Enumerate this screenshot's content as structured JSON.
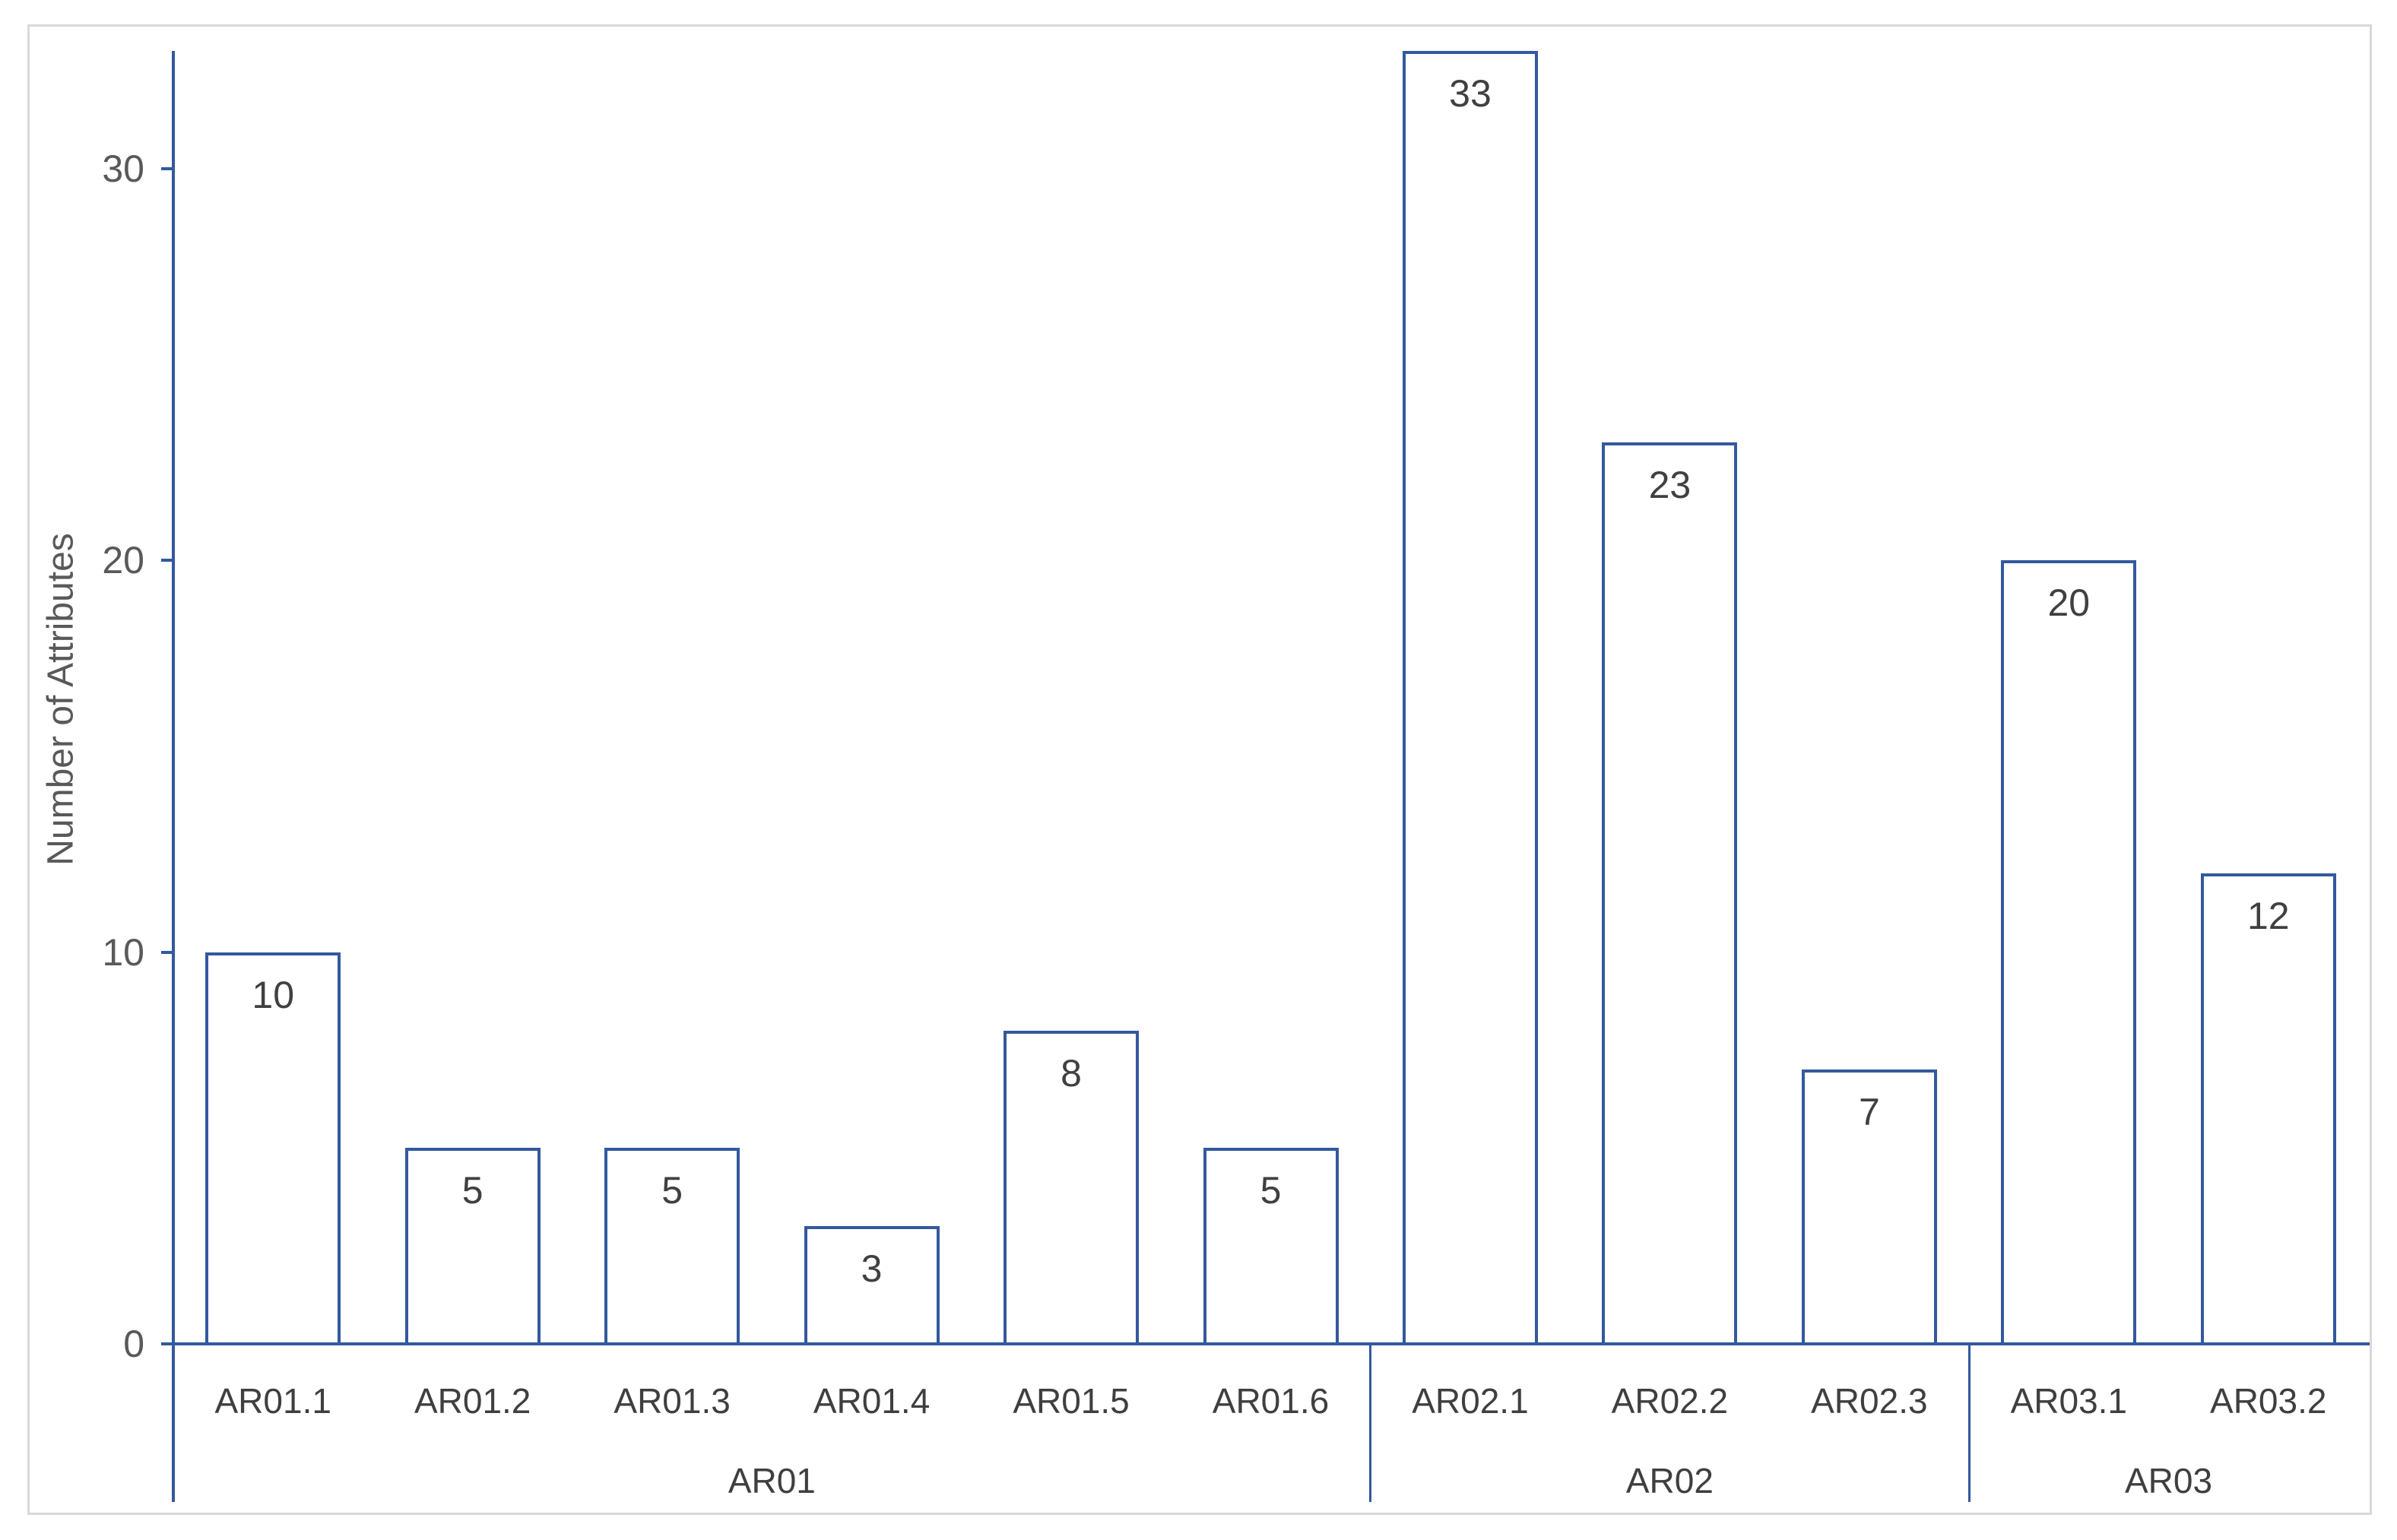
{
  "chart_data": {
    "type": "bar",
    "title": "",
    "xlabel": "",
    "ylabel": "Number of Attributes",
    "ylim": [
      0,
      33
    ],
    "yticks": [
      0,
      10,
      20,
      30
    ],
    "gridlines": false,
    "legend": false,
    "data_labels_position": "inside-end",
    "groups": [
      {
        "label": "AR01",
        "categories": [
          "AR01.1",
          "AR01.2",
          "AR01.3",
          "AR01.4",
          "AR01.5",
          "AR01.6"
        ],
        "values": [
          10,
          5,
          5,
          3,
          8,
          5
        ]
      },
      {
        "label": "AR02",
        "categories": [
          "AR02.1",
          "AR02.2",
          "AR02.3"
        ],
        "values": [
          33,
          23,
          7
        ]
      },
      {
        "label": "AR03",
        "categories": [
          "AR03.1",
          "AR03.2"
        ],
        "values": [
          20,
          12
        ]
      }
    ],
    "colors": {
      "bar_fill": "#FFFFFF",
      "bar_border": "#33599E",
      "axis": "#33599E",
      "separator": "#33599E",
      "data_label_text": "#404040",
      "tick_text": "#595959",
      "category_text": "#3F3F3F",
      "axis_title_text": "#595959",
      "frame_border": "#D9D9D9",
      "background": "#FFFFFF"
    }
  }
}
